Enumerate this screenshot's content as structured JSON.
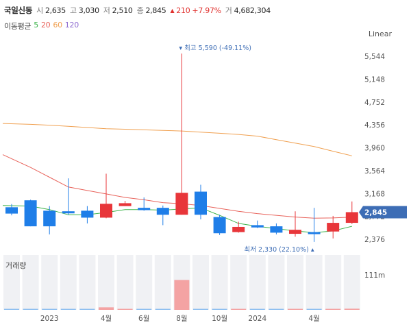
{
  "header": {
    "name": "국일신동",
    "open_label": "시",
    "open": "2,635",
    "high_label": "고",
    "high": "3,030",
    "low_label": "저",
    "low": "2,510",
    "close_label": "종",
    "close": "2,845",
    "change_icon": "triangle-up-icon",
    "change": "210",
    "change_pct": "+7.97%",
    "volume_label": "거",
    "volume": "4,682,304"
  },
  "moving_average": {
    "label": "이동평균",
    "periods": [
      {
        "label": "5",
        "color": "#3cb44b"
      },
      {
        "label": "20",
        "color": "#e8625a"
      },
      {
        "label": "60",
        "color": "#f0a050"
      },
      {
        "label": "120",
        "color": "#8e6bd0"
      }
    ]
  },
  "scale": {
    "label": "Linear"
  },
  "colors": {
    "up": "#e8363a",
    "down": "#1f7ee8",
    "vol_up": "#f4a3a3",
    "vol_down": "#8fbff0",
    "current": "#3d6db5"
  },
  "chart_data": {
    "type": "candlestick",
    "y_ticks": [
      "5,544",
      "5,148",
      "4,752",
      "4,356",
      "3,960",
      "3,564",
      "3,168",
      "2,772",
      "2,376"
    ],
    "y_tick_values": [
      5544,
      5148,
      4752,
      4356,
      3960,
      3564,
      3168,
      2772,
      2376
    ],
    "ylim": [
      2200,
      5800
    ],
    "x_labels": [
      {
        "label": "2023",
        "index": 2
      },
      {
        "label": "4월",
        "index": 5
      },
      {
        "label": "6월",
        "index": 7
      },
      {
        "label": "8월",
        "index": 9
      },
      {
        "label": "10월",
        "index": 11
      },
      {
        "label": "2024",
        "index": 13
      },
      {
        "label": "4월",
        "index": 16
      }
    ],
    "candles": [
      {
        "o": 2930,
        "h": 2985,
        "c": 2820,
        "l": 2790
      },
      {
        "o": 3050,
        "h": 3060,
        "c": 2600,
        "l": 2600
      },
      {
        "o": 2870,
        "h": 2950,
        "c": 2600,
        "l": 2460
      },
      {
        "o": 2860,
        "h": 3430,
        "c": 2830,
        "l": 2800
      },
      {
        "o": 2870,
        "h": 2950,
        "c": 2750,
        "l": 2650
      },
      {
        "o": 2750,
        "h": 3510,
        "c": 2990,
        "l": 2740
      },
      {
        "o": 2950,
        "h": 3040,
        "c": 3000,
        "l": 2950
      },
      {
        "o": 2920,
        "h": 3100,
        "c": 2880,
        "l": 2870
      },
      {
        "o": 2920,
        "h": 2960,
        "c": 2800,
        "l": 2620
      },
      {
        "o": 2800,
        "h": 5590,
        "c": 3180,
        "l": 2800
      },
      {
        "o": 3200,
        "h": 3320,
        "c": 2800,
        "l": 2720
      },
      {
        "o": 2760,
        "h": 2800,
        "c": 2480,
        "l": 2450
      },
      {
        "o": 2500,
        "h": 2680,
        "c": 2590,
        "l": 2490
      },
      {
        "o": 2620,
        "h": 2700,
        "c": 2580,
        "l": 2570
      },
      {
        "o": 2600,
        "h": 2650,
        "c": 2490,
        "l": 2460
      },
      {
        "o": 2470,
        "h": 2860,
        "c": 2540,
        "l": 2420
      },
      {
        "o": 2500,
        "h": 2920,
        "c": 2480,
        "l": 2330
      },
      {
        "o": 2510,
        "h": 2780,
        "c": 2660,
        "l": 2390
      },
      {
        "o": 2660,
        "h": 3030,
        "c": 2845,
        "l": 2640
      }
    ],
    "ma5": [
      2960,
      2950,
      2890,
      2800,
      2800,
      2840,
      2890,
      2890,
      2880,
      2900,
      2920,
      2790,
      2650,
      2600,
      2560,
      2520,
      2490,
      2520,
      2600
    ],
    "ma20": [
      3840,
      3620,
      3450,
      3280,
      3220,
      3160,
      3100,
      3060,
      3010,
      2990,
      2960,
      2910,
      2860,
      2820,
      2790,
      2760,
      2740,
      2745,
      2760
    ],
    "ma60": [
      4380,
      4365,
      4350,
      4330,
      4310,
      4290,
      4280,
      4270,
      4260,
      4250,
      4230,
      4210,
      4190,
      4160,
      4100,
      4040,
      3980,
      3900,
      3820
    ],
    "high_marker": {
      "label": "최고 5,590 (-49.11%)",
      "index": 9,
      "value": 5590
    },
    "low_marker": {
      "label": "최저 2,330 (22.10%)",
      "index": 16,
      "value": 2330
    },
    "current_price": {
      "label": "2,845",
      "value": 2845
    },
    "volume": {
      "title": "거래량",
      "tick_label": "111m",
      "tick_value": 111,
      "unit": "m",
      "values": [
        0.3,
        0.4,
        0.2,
        1.5,
        0.3,
        8,
        0.6,
        0.4,
        0.5,
        95,
        3,
        1.2,
        1.2,
        1.1,
        1.6,
        2.8,
        3.2,
        2.8,
        3.8
      ]
    }
  }
}
